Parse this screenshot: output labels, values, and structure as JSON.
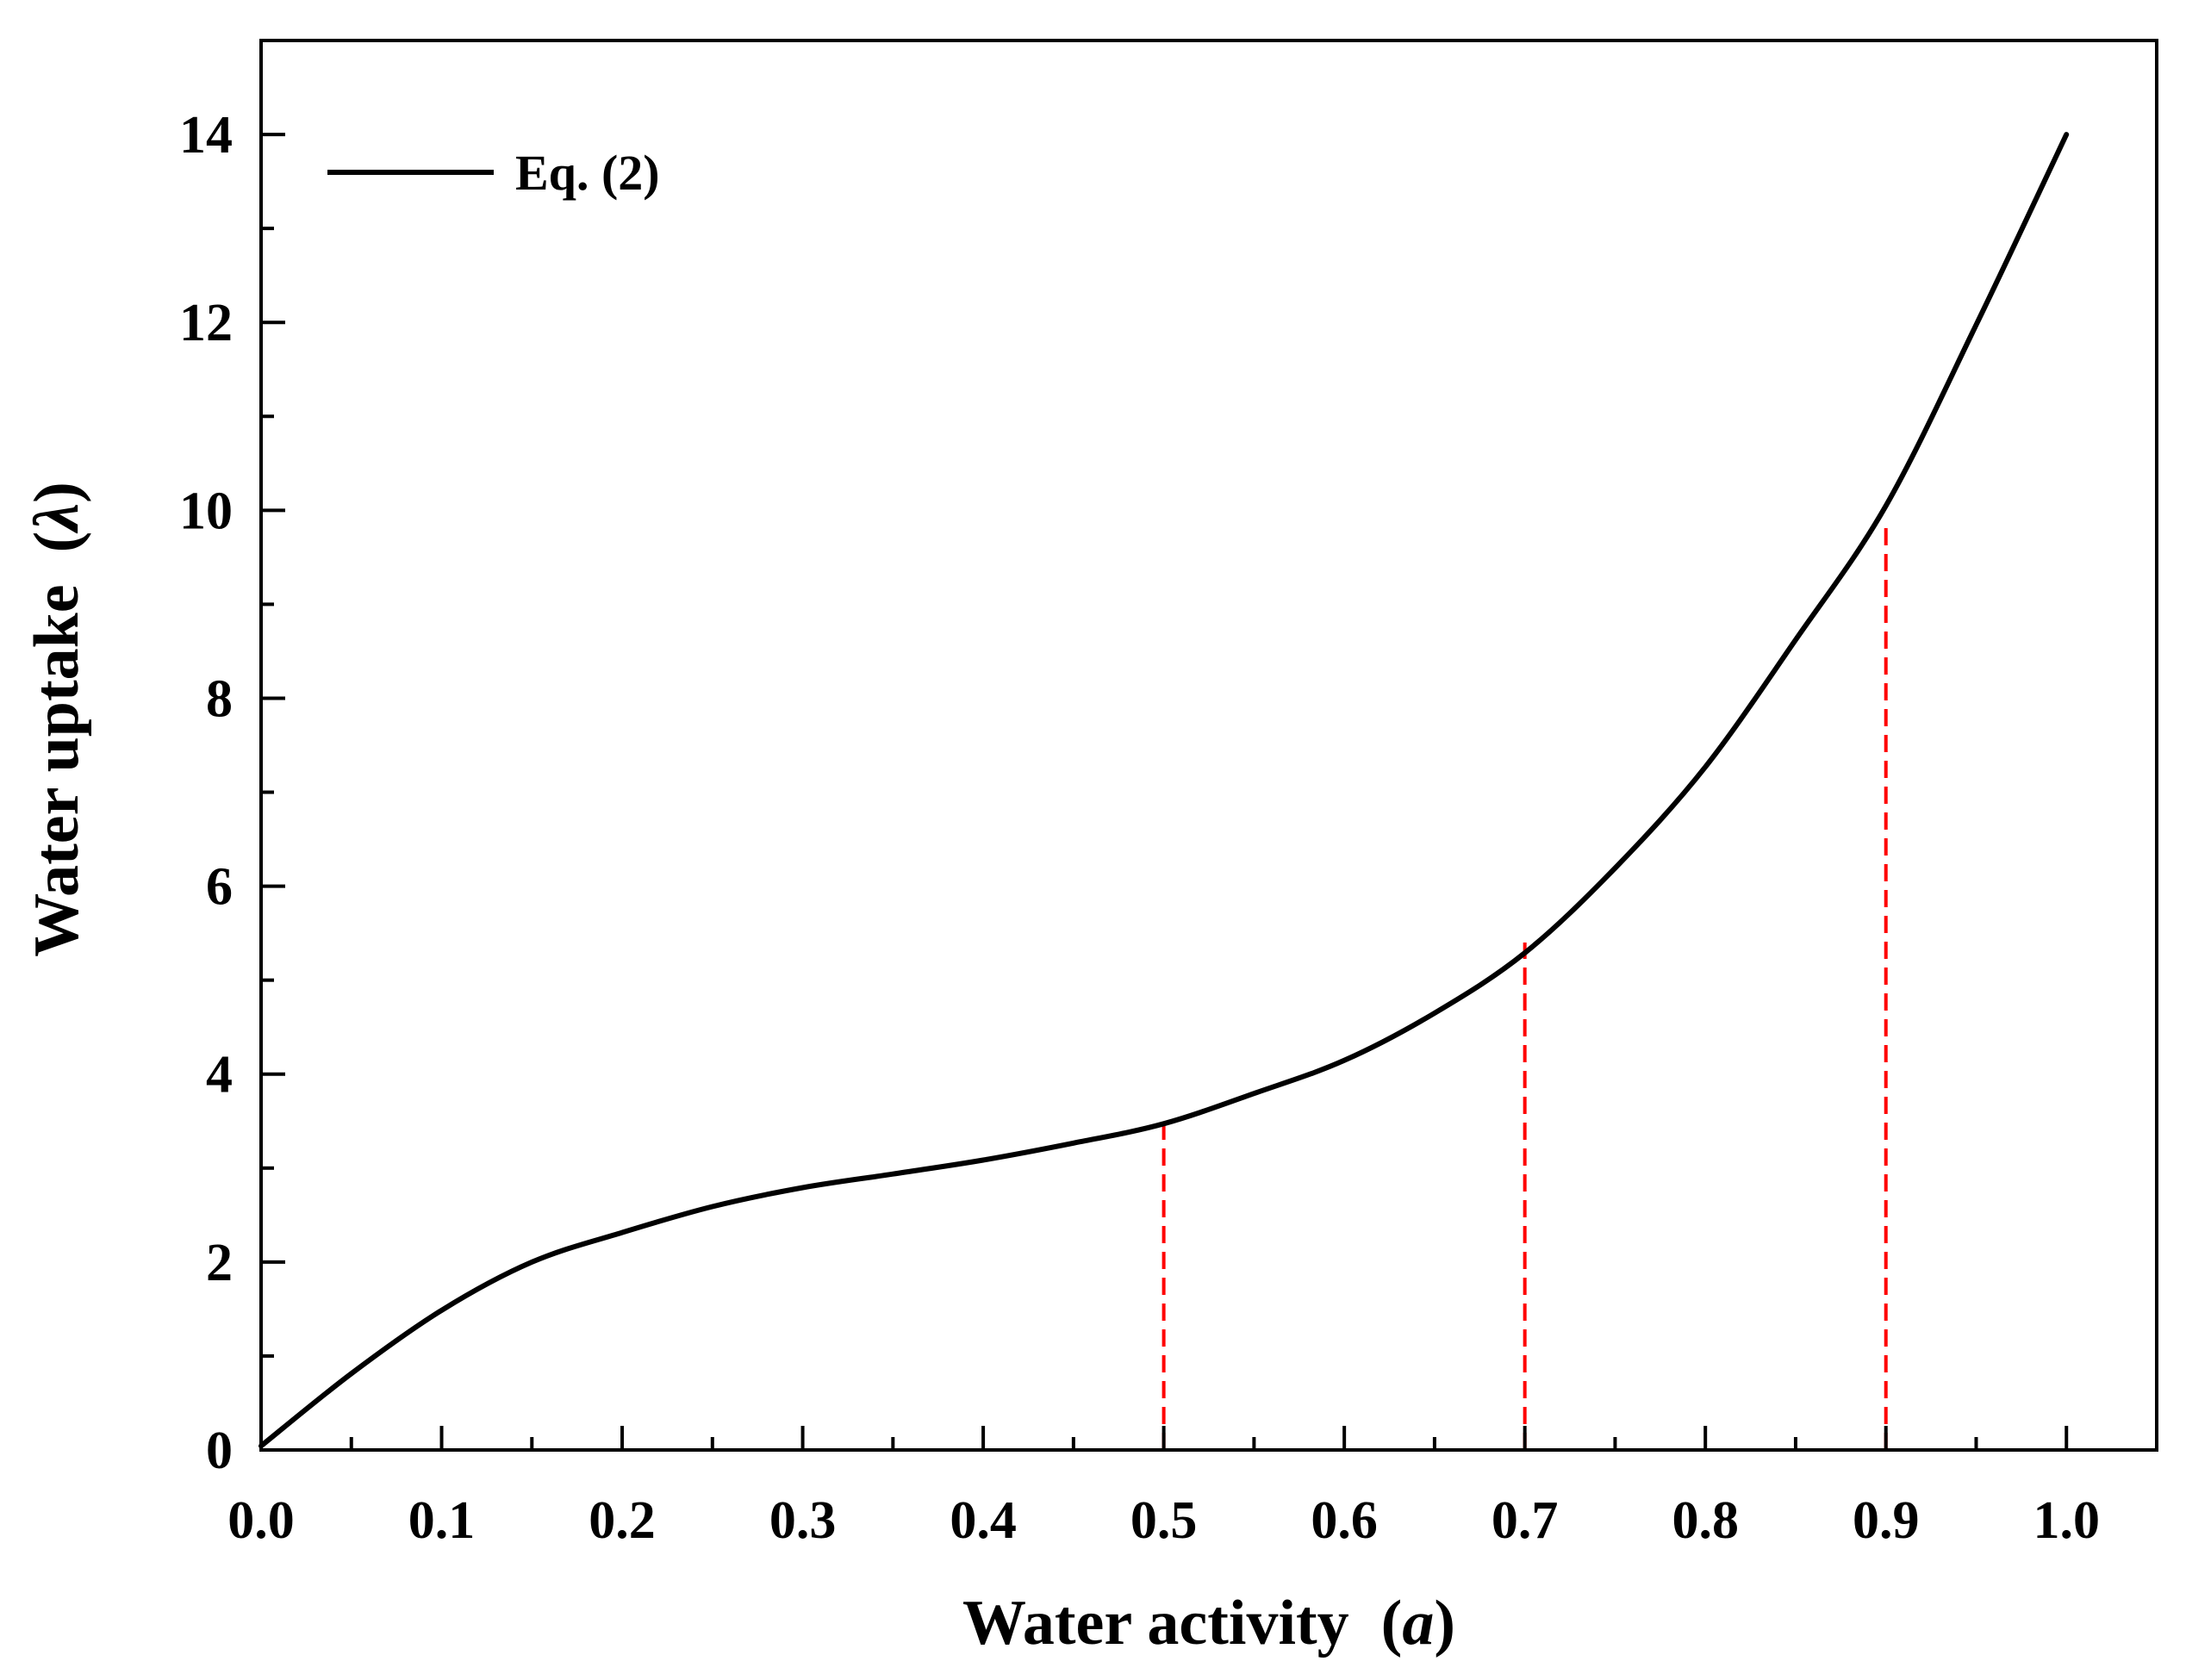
{
  "chart_data": {
    "type": "line",
    "title": "",
    "xlabel": "Water activity",
    "xlabel_symbol": "a",
    "ylabel": "Water uptake",
    "ylabel_symbol": "λ",
    "xlim": [
      0.0,
      1.05
    ],
    "ylim": [
      0,
      15
    ],
    "x_ticks": [
      0.0,
      0.1,
      0.2,
      0.3,
      0.4,
      0.5,
      0.6,
      0.7,
      0.8,
      0.9,
      1.0
    ],
    "x_tick_labels": [
      "0.0",
      "0.1",
      "0.2",
      "0.3",
      "0.4",
      "0.5",
      "0.6",
      "0.7",
      "0.8",
      "0.9",
      "1.0"
    ],
    "y_ticks": [
      0,
      2,
      4,
      6,
      8,
      10,
      12,
      14
    ],
    "y_tick_labels": [
      "0",
      "2",
      "4",
      "6",
      "8",
      "10",
      "12",
      "14"
    ],
    "grid": false,
    "legend_position": "top-left",
    "series": [
      {
        "name": "Eq. (2)",
        "color": "#000000",
        "x": [
          0.0,
          0.05,
          0.1,
          0.15,
          0.2,
          0.25,
          0.3,
          0.35,
          0.4,
          0.45,
          0.5,
          0.55,
          0.6,
          0.65,
          0.7,
          0.75,
          0.8,
          0.85,
          0.9,
          0.95,
          1.0
        ],
        "y": [
          0.043,
          0.813,
          1.486,
          2.0,
          2.314,
          2.59,
          2.792,
          2.937,
          3.085,
          3.266,
          3.472,
          3.794,
          4.146,
          4.649,
          5.29,
          6.193,
          7.269,
          8.622,
          10.048,
          11.974,
          14.0
        ]
      }
    ],
    "reference_lines": [
      {
        "x": 0.5,
        "y_top": 3.45,
        "color": "#ff0000",
        "style": "dashed"
      },
      {
        "x": 0.7,
        "y_top": 5.4,
        "color": "#ff0000",
        "style": "dashed"
      },
      {
        "x": 0.9,
        "y_top": 9.9,
        "color": "#ff0000",
        "style": "dashed"
      }
    ]
  }
}
